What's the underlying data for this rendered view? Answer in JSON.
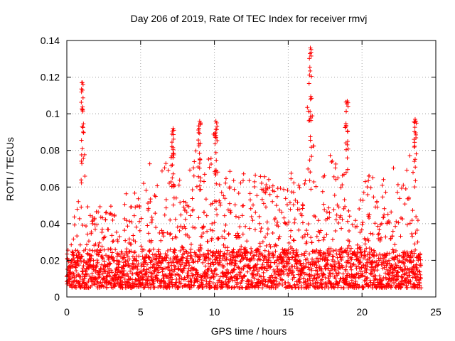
{
  "chart_data": {
    "type": "scatter",
    "title": "Day 206 of 2019, Rate Of TEC Index for receiver rmvj",
    "xlabel": "GPS time / hours",
    "ylabel": "ROTI / TECUs",
    "xlim": [
      0,
      25
    ],
    "ylim": [
      0,
      0.14
    ],
    "xticks": [
      0,
      5,
      10,
      15,
      20,
      25
    ],
    "xtick_labels": [
      "0",
      "5",
      "10",
      "15",
      "20",
      "25"
    ],
    "yticks": [
      0,
      0.02,
      0.04,
      0.06,
      0.08,
      0.1,
      0.12,
      0.14
    ],
    "ytick_labels": [
      "0",
      "0.02",
      "0.04",
      "0.06",
      "0.08",
      "0.1",
      "0.12",
      "0.14"
    ],
    "grid": true,
    "marker": "+",
    "series": [
      {
        "name": "ROTI",
        "color": "#ff0000",
        "envelope": {
          "x": [
            0,
            0.3,
            0.6,
            0.9,
            1.0,
            1.1,
            1.3,
            1.6,
            2.0,
            2.5,
            3.0,
            3.5,
            4.0,
            4.5,
            5.0,
            5.5,
            6.0,
            6.5,
            7.0,
            7.2,
            7.5,
            8.0,
            8.5,
            9.0,
            9.5,
            10.0,
            10.2,
            10.5,
            11.0,
            11.5,
            12.0,
            12.5,
            13.0,
            13.5,
            14.0,
            14.5,
            15.0,
            15.5,
            16.0,
            16.5,
            16.8,
            17.0,
            17.5,
            18.0,
            18.5,
            19.0,
            19.2,
            19.5,
            20.0,
            20.5,
            21.0,
            21.5,
            22.0,
            22.5,
            23.0,
            23.5,
            23.7,
            24.0
          ],
          "ymax": [
            0.03,
            0.04,
            0.05,
            0.07,
            0.117,
            0.1,
            0.06,
            0.045,
            0.058,
            0.045,
            0.05,
            0.045,
            0.063,
            0.055,
            0.065,
            0.078,
            0.06,
            0.075,
            0.07,
            0.092,
            0.07,
            0.065,
            0.075,
            0.096,
            0.07,
            0.096,
            0.07,
            0.06,
            0.07,
            0.06,
            0.076,
            0.06,
            0.072,
            0.065,
            0.07,
            0.065,
            0.075,
            0.06,
            0.07,
            0.136,
            0.085,
            0.06,
            0.075,
            0.082,
            0.065,
            0.107,
            0.06,
            0.05,
            0.06,
            0.07,
            0.06,
            0.065,
            0.08,
            0.06,
            0.07,
            0.097,
            0.05,
            0.025
          ]
        },
        "spikes": [
          {
            "x": 1.05,
            "y": 0.117
          },
          {
            "x": 7.2,
            "y": 0.092
          },
          {
            "x": 9.0,
            "y": 0.096
          },
          {
            "x": 10.1,
            "y": 0.096
          },
          {
            "x": 16.5,
            "y": 0.136
          },
          {
            "x": 19.0,
            "y": 0.107
          },
          {
            "x": 23.6,
            "y": 0.097
          }
        ],
        "n_points": 2880
      }
    ]
  }
}
